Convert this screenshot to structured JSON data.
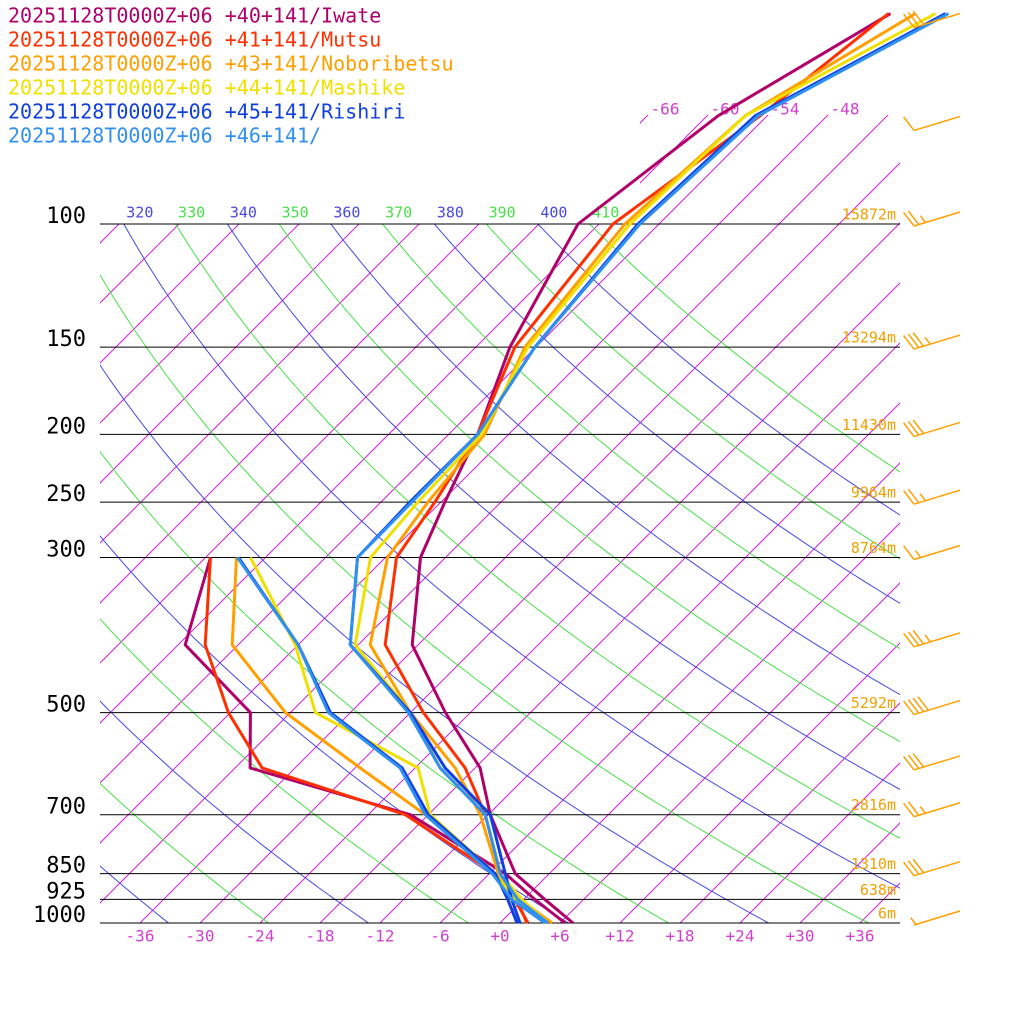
{
  "chart_data": {
    "type": "skewt",
    "log_scale": true,
    "ylim": [
      1000,
      100
    ],
    "yticks": [
      1000,
      925,
      850,
      700,
      500,
      300,
      250,
      200,
      150,
      100
    ],
    "heights": [
      "6m",
      "638m",
      "1310m",
      "2816m",
      "5292m",
      "8764m",
      "9964m",
      "11430m",
      "13294m",
      "15872m"
    ],
    "xlim": [
      -40,
      40
    ],
    "xticks": [
      -36,
      -30,
      -24,
      -18,
      -12,
      -6,
      {
        "value": 0,
        "label": "+0"
      },
      {
        "value": 6,
        "label": "+6"
      },
      {
        "value": 12,
        "label": "+12"
      },
      {
        "value": 18,
        "label": "+18"
      },
      {
        "value": 24,
        "label": "+24"
      },
      {
        "value": 30,
        "label": "+30"
      },
      {
        "value": 36,
        "label": "+36"
      }
    ],
    "isotherm_labels": [
      -66,
      -60,
      -54,
      -48
    ],
    "isotherm_color": "#d020d0",
    "adiabats": [
      320,
      330,
      340,
      350,
      360,
      370,
      380,
      390,
      400,
      410
    ],
    "adiabat_colors": [
      "#4848e0",
      "#48e048"
    ],
    "wind_color": "#ffa000",
    "pressure": [
      1000,
      925,
      850,
      700,
      600,
      500,
      400,
      300,
      250,
      200,
      150,
      100,
      70,
      50
    ],
    "series": [
      {
        "name": "20251128T0000Z+06 +40+141/Iwate",
        "color": "#b0006a",
        "temperature": [
          7.3,
          2.1,
          -3.4,
          -11.8,
          -17.5,
          -26.5,
          -36.6,
          -44.5,
          -47.6,
          -51.1,
          -56.6,
          -62.1,
          -58.9,
          -51.9
        ],
        "dewpoint": [
          6.5,
          1.1,
          -4.4,
          -19.8,
          -40.5,
          -46,
          -59.3,
          -65.5,
          null,
          null,
          null,
          null,
          null,
          null
        ]
      },
      {
        "name": "20251128T0000Z+06 +41+141/Mutsu",
        "color": "#ff3000",
        "temperature": [
          2.7,
          -0.7,
          -4.9,
          -12.3,
          -19,
          -28.7,
          -39.3,
          -46.9,
          -48.6,
          -51.1,
          -56.1,
          -58.6,
          -54.7,
          -52.1
        ],
        "dewpoint": [
          2.8,
          -0.9,
          -5.4,
          -20.3,
          -39.3,
          -48.2,
          -57.3,
          -65.5,
          null,
          null,
          null,
          null,
          null,
          null
        ]
      },
      {
        "name": "20251128T0000Z+06 +43+141/Noboribetsu",
        "color": "#ffa000",
        "temperature": [
          5.2,
          -0.4,
          -5.1,
          -12.8,
          -20,
          -30,
          -40.8,
          -47.8,
          -49.3,
          -50.4,
          -55.1,
          -57.4,
          -56.2,
          -49.4
        ],
        "dewpoint": [
          4.8,
          -0.9,
          -5.6,
          -18.3,
          -29.5,
          -42.5,
          -54.6,
          -62.9,
          null,
          null,
          null,
          null,
          null,
          null
        ]
      },
      {
        "name": "20251128T0000Z+06 +44+141/Mashike",
        "color": "#f0e000",
        "temperature": [
          4.8,
          -0.2,
          -4.9,
          -12.3,
          -21.5,
          -30,
          -42.3,
          -49.5,
          -50.3,
          -50.7,
          -54.8,
          -56.9,
          -56.2,
          -47.4
        ],
        "dewpoint": [
          4.5,
          -0.9,
          -5.4,
          -17.8,
          -23.7,
          -39.5,
          -48.3,
          -61.5,
          null,
          null,
          null,
          null,
          null,
          null
        ]
      },
      {
        "name": "20251128T0000Z+06 +45+141/Rishiri",
        "color": "#1040e0",
        "temperature": [
          2,
          -1.2,
          -4.4,
          -11.8,
          -21,
          -30,
          -42.8,
          -50.8,
          -51.1,
          -51.1,
          -54.1,
          -56.1,
          -55.2,
          -46.4
        ],
        "dewpoint": [
          1.7,
          -1.6,
          -5.4,
          -18,
          -25.3,
          -38,
          -48,
          -62.7,
          null,
          null,
          null,
          null,
          null,
          null
        ]
      },
      {
        "name": "20251128T0000Z+06 +46+141/",
        "color": "#3090f0",
        "temperature": [
          4.8,
          -0.6,
          -4.9,
          -12.3,
          -21.5,
          -30.2,
          -42.8,
          -50.8,
          -50.9,
          -51.1,
          -54.1,
          -55.9,
          -54.9,
          -46.1
        ],
        "dewpoint": [
          4.5,
          -1.2,
          -5.7,
          -18.3,
          -25.5,
          -38.2,
          -48,
          -62.8,
          null,
          null,
          null,
          null,
          null,
          null
        ]
      }
    ],
    "wind": {
      "pressure": [
        52,
        73,
        100,
        150,
        200,
        250,
        300,
        400,
        500,
        600,
        700,
        850,
        1000
      ],
      "speed": [
        30,
        10,
        25,
        35,
        30,
        25,
        15,
        35,
        40,
        30,
        25,
        30,
        5
      ]
    }
  }
}
